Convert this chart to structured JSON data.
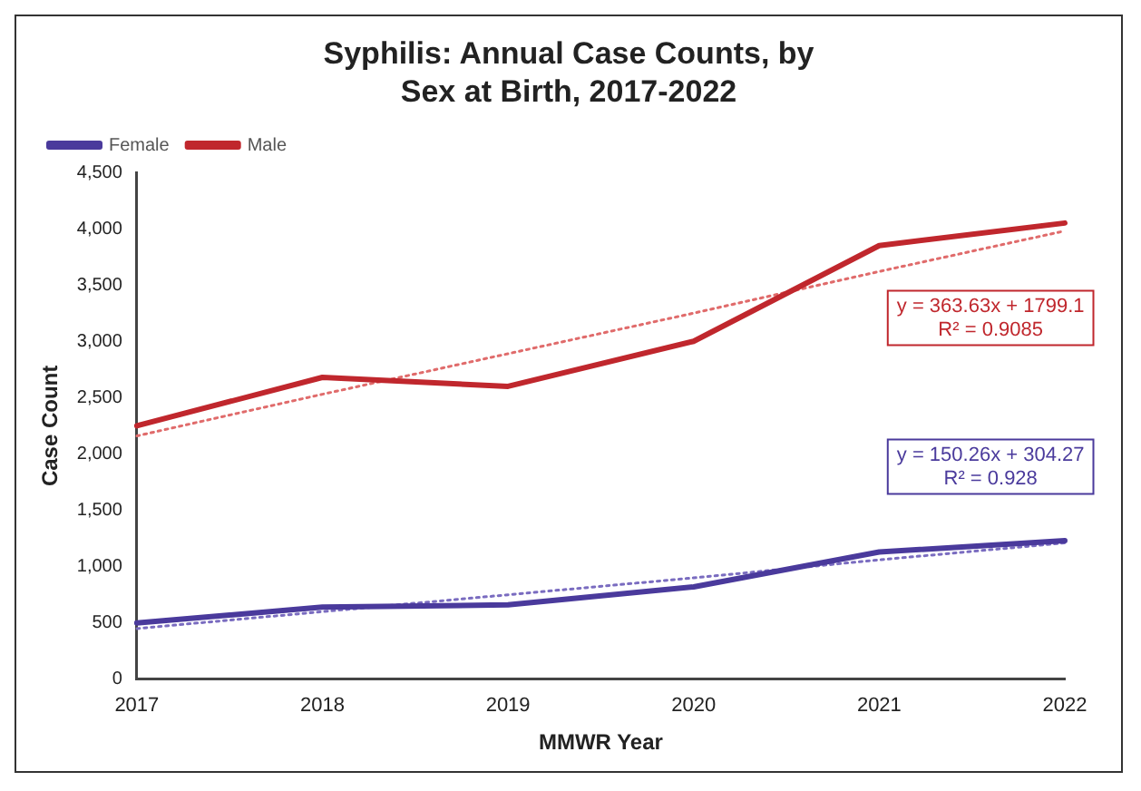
{
  "chart_data": {
    "type": "line",
    "title": "Syphilis: Annual Case Counts, by Sex at Birth, 2017-2022",
    "xlabel": "MMWR Year",
    "ylabel": "Case Count",
    "categories": [
      "2017",
      "2018",
      "2019",
      "2020",
      "2021",
      "2022"
    ],
    "series": [
      {
        "name": "Female",
        "color": "#4a3a9c",
        "values": [
          500,
          640,
          660,
          820,
          1130,
          1230
        ]
      },
      {
        "name": "Male",
        "color": "#c0272d",
        "values": [
          2250,
          2680,
          2600,
          3000,
          3850,
          4050
        ]
      },
      {
        "color": "#7a6cc0",
        "values": [
          450,
          600,
          750,
          900,
          1060,
          1210
        ],
        "line_style": "dotted"
      },
      {
        "color": "#e06b6b",
        "values": [
          2160,
          2530,
          2890,
          3250,
          3620,
          3980
        ],
        "line_style": "dotted"
      }
    ],
    "annotations": [
      "y = 150.26x + 304.27\nR² = 0.928",
      "y = 363.63x + 1799.1\nR² = 0.9085"
    ],
    "ylim": [
      0,
      4500
    ],
    "yticks": [
      0,
      500,
      {
        "value": 1000,
        "label": "1,000"
      },
      {
        "value": 1500,
        "label": "1,500"
      },
      {
        "value": 2000,
        "label": "2,000"
      },
      {
        "value": 2500,
        "label": "2,500"
      },
      {
        "value": 3000,
        "label": "3,000"
      },
      {
        "value": 3500,
        "label": "3,500"
      },
      {
        "value": 4000,
        "label": "4,000"
      },
      {
        "value": 4500,
        "label": "4,500"
      }
    ],
    "grid": false,
    "legend": "top left",
    "marker": "none",
    "line_style": "solid"
  }
}
